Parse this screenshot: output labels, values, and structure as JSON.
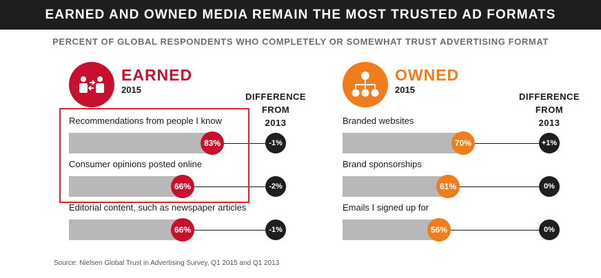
{
  "title": "EARNED AND OWNED MEDIA REMAIN THE MOST TRUSTED AD FORMATS",
  "subtitle": "PERCENT OF GLOBAL RESPONDENTS WHO COMPLETELY OR SOMEWHAT TRUST ADVERTISING FORMAT",
  "source": "Source: Nielsen Global Trust in Advertising Survey, Q1 2015 and Q1 2013",
  "colors": {
    "earned": "#c8102e",
    "owned": "#f07c1b",
    "dark": "#1e1e1e",
    "bar": "#b8b8b8"
  },
  "chart_data": [
    {
      "type": "bar",
      "group": "EARNED",
      "year": "2015",
      "icon": "people-exchange-icon",
      "difference_label": [
        "DIFFERENCE",
        "FROM",
        "2013"
      ],
      "categories": [
        "Recommendations from people I know",
        "Consumer opinions posted online",
        "Editorial content, such as newspaper articles"
      ],
      "values": [
        83,
        66,
        66
      ],
      "value_labels": [
        "83%",
        "66%",
        "66%"
      ],
      "difference_from_2013": [
        "-1%",
        "-2%",
        "-1%"
      ],
      "xlim": [
        0,
        100
      ],
      "highlighted": [
        0,
        1
      ]
    },
    {
      "type": "bar",
      "group": "OWNED",
      "year": "2015",
      "icon": "org-chart-icon",
      "difference_label": [
        "DIFFERENCE",
        "FROM",
        "2013"
      ],
      "categories": [
        "Branded websites",
        "Brand sponsorships",
        "Emails I signed up for"
      ],
      "values": [
        70,
        61,
        56
      ],
      "value_labels": [
        "70%",
        "61%",
        "56%"
      ],
      "difference_from_2013": [
        "+1%",
        "0%",
        "0%"
      ],
      "xlim": [
        0,
        100
      ],
      "highlighted": []
    }
  ]
}
